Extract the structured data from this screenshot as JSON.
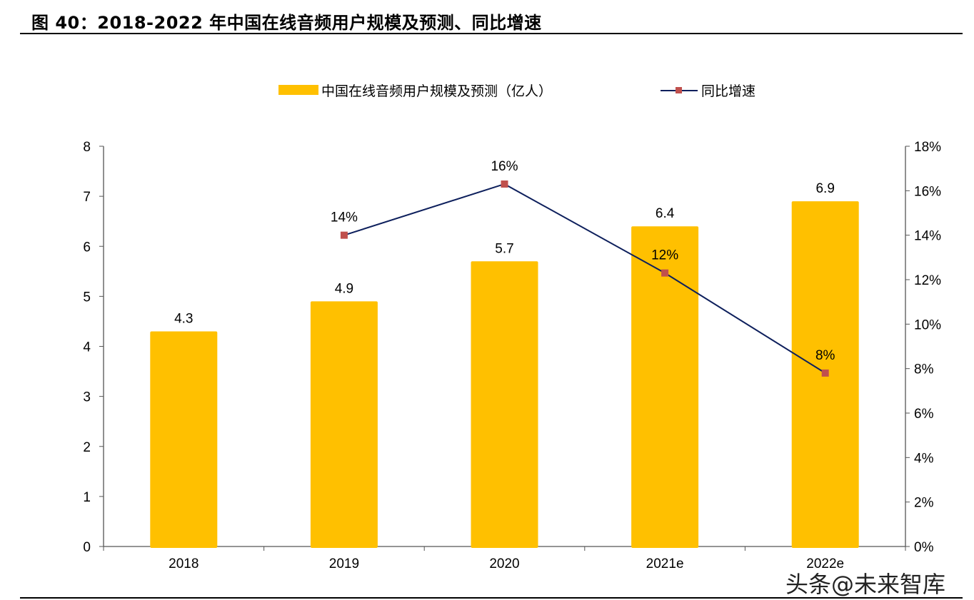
{
  "title": "图 40：2018-2022 年中国在线音频用户规模及预测、同比增速",
  "watermark": "头条@未来智库",
  "colors": {
    "bar": "#FFC000",
    "line": "#0D1F5C",
    "marker": "#C0504D"
  },
  "chart_data": {
    "type": "bar+line",
    "categories": [
      "2018",
      "2019",
      "2020",
      "2021e",
      "2022e"
    ],
    "series": [
      {
        "name": "中国在线音频用户规模及预测（亿人）",
        "type": "bar",
        "axis": "left",
        "values": [
          4.3,
          4.9,
          5.7,
          6.4,
          6.9
        ],
        "labels": [
          "4.3",
          "4.9",
          "5.7",
          "6.4",
          "6.9"
        ]
      },
      {
        "name": "同比增速",
        "type": "line",
        "axis": "right",
        "values": [
          null,
          14.0,
          16.3,
          12.3,
          7.8
        ],
        "labels": [
          "",
          "14%",
          "16%",
          "12%",
          "8%"
        ]
      }
    ],
    "left_axis": {
      "min": 0,
      "max": 8,
      "step": 1,
      "ticks": [
        "0",
        "1",
        "2",
        "3",
        "4",
        "5",
        "6",
        "7",
        "8"
      ]
    },
    "right_axis": {
      "min": 0,
      "max": 18,
      "step": 2,
      "ticks": [
        "0%",
        "2%",
        "4%",
        "6%",
        "8%",
        "10%",
        "12%",
        "14%",
        "16%",
        "18%"
      ]
    },
    "legend": "top-center",
    "grid": false
  }
}
